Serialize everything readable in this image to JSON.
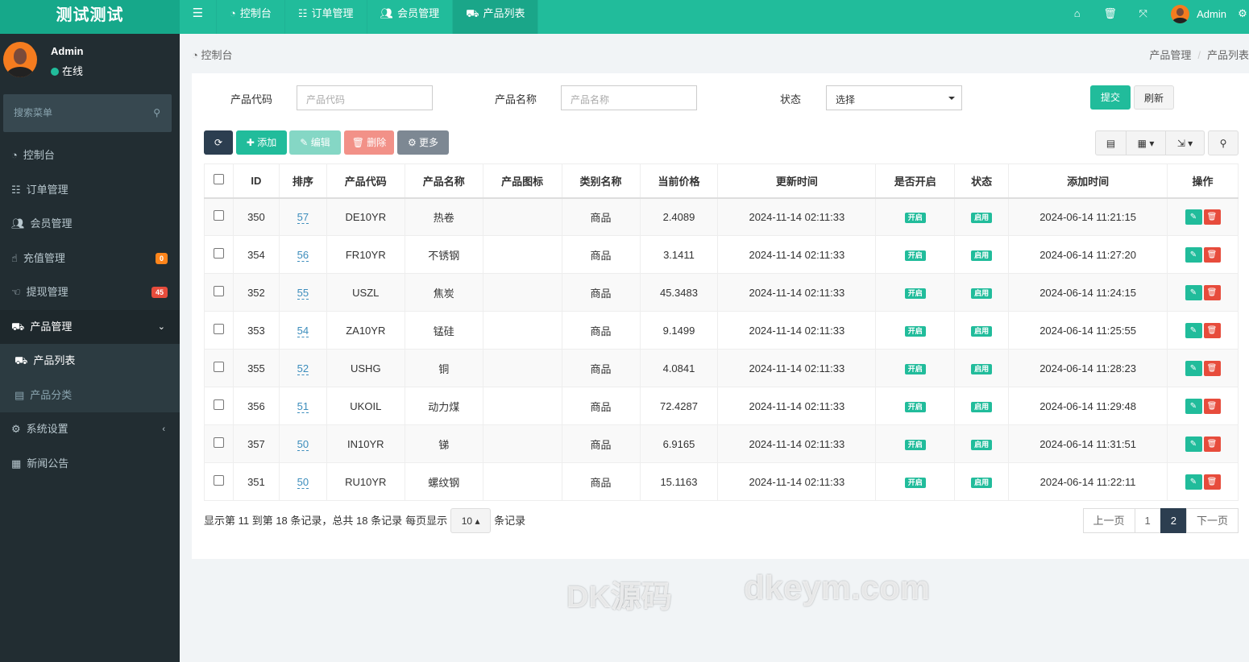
{
  "app": {
    "title": "测试测试"
  },
  "topnav": {
    "items": [
      {
        "label": "控制台",
        "icon": "dashboard-icon"
      },
      {
        "label": "订单管理",
        "icon": "list-icon"
      },
      {
        "label": "会员管理",
        "icon": "users-icon"
      },
      {
        "label": "产品列表",
        "icon": "shopping-bag-icon",
        "active": true
      }
    ],
    "user": "Admin"
  },
  "sidebar": {
    "user": {
      "name": "Admin",
      "status": "在线"
    },
    "search_placeholder": "搜索菜单",
    "items": [
      {
        "label": "控制台"
      },
      {
        "label": "订单管理"
      },
      {
        "label": "会员管理"
      },
      {
        "label": "充值管理",
        "badge": "0",
        "badge_color": "#ff851b"
      },
      {
        "label": "提现管理",
        "badge": "45",
        "badge_color": "#e74c3c"
      },
      {
        "label": "产品管理",
        "open": true
      },
      {
        "label": "产品列表",
        "active": true
      },
      {
        "label": "产品分类"
      },
      {
        "label": "系统设置"
      },
      {
        "label": "新闻公告"
      }
    ]
  },
  "breadcrumb": {
    "home": "控制台",
    "path": [
      "产品管理",
      "产品列表"
    ]
  },
  "search_form": {
    "code_label": "产品代码",
    "code_placeholder": "产品代码",
    "name_label": "产品名称",
    "name_placeholder": "产品名称",
    "status_label": "状态",
    "status_value": "选择",
    "submit": "提交",
    "reset": "刷新"
  },
  "toolbar": {
    "add": "添加",
    "edit": "编辑",
    "delete": "删除",
    "more": "更多"
  },
  "table": {
    "headers": [
      "ID",
      "排序",
      "产品代码",
      "产品名称",
      "产品图标",
      "类别名称",
      "当前价格",
      "更新时间",
      "是否开启",
      "状态",
      "添加时间",
      "操作"
    ],
    "rows": [
      {
        "id": "350",
        "sort": "57",
        "code": "DE10YR",
        "name": "热卷",
        "icon": "",
        "category": "商品",
        "price": "2.4089",
        "updated": "2024-11-14 02:11:33",
        "open": "开启",
        "status": "启用",
        "added": "2024-06-14 11:21:15"
      },
      {
        "id": "354",
        "sort": "56",
        "code": "FR10YR",
        "name": "不锈钢",
        "icon": "",
        "category": "商品",
        "price": "3.1411",
        "updated": "2024-11-14 02:11:33",
        "open": "开启",
        "status": "启用",
        "added": "2024-06-14 11:27:20"
      },
      {
        "id": "352",
        "sort": "55",
        "code": "USZL",
        "name": "焦炭",
        "icon": "",
        "category": "商品",
        "price": "45.3483",
        "updated": "2024-11-14 02:11:33",
        "open": "开启",
        "status": "启用",
        "added": "2024-06-14 11:24:15"
      },
      {
        "id": "353",
        "sort": "54",
        "code": "ZA10YR",
        "name": "锰硅",
        "icon": "",
        "category": "商品",
        "price": "9.1499",
        "updated": "2024-11-14 02:11:33",
        "open": "开启",
        "status": "启用",
        "added": "2024-06-14 11:25:55"
      },
      {
        "id": "355",
        "sort": "52",
        "code": "USHG",
        "name": "铜",
        "icon": "",
        "category": "商品",
        "price": "4.0841",
        "updated": "2024-11-14 02:11:33",
        "open": "开启",
        "status": "启用",
        "added": "2024-06-14 11:28:23"
      },
      {
        "id": "356",
        "sort": "51",
        "code": "UKOIL",
        "name": "动力煤",
        "icon": "",
        "category": "商品",
        "price": "72.4287",
        "updated": "2024-11-14 02:11:33",
        "open": "开启",
        "status": "启用",
        "added": "2024-06-14 11:29:48"
      },
      {
        "id": "357",
        "sort": "50",
        "code": "IN10YR",
        "name": "锑",
        "icon": "",
        "category": "商品",
        "price": "6.9165",
        "updated": "2024-11-14 02:11:33",
        "open": "开启",
        "status": "启用",
        "added": "2024-06-14 11:31:51"
      },
      {
        "id": "351",
        "sort": "50",
        "code": "RU10YR",
        "name": "螺纹钢",
        "icon": "",
        "category": "商品",
        "price": "15.1163",
        "updated": "2024-11-14 02:11:33",
        "open": "开启",
        "status": "启用",
        "added": "2024-06-14 11:22:11"
      }
    ]
  },
  "pagination": {
    "info": "显示第 11 到第 18 条记录，总共 18 条记录",
    "per_page_prefix": "每页显示",
    "page_size": "10",
    "per_page_suffix": "条记录",
    "prev": "上一页",
    "pages": [
      "1",
      "2"
    ],
    "current": "2",
    "next": "下一页"
  },
  "watermark": [
    "DK源码",
    "dkeym.com"
  ],
  "colors": {
    "primary": "#21bc9b",
    "danger": "#e74c3c",
    "sidebar": "#222d32",
    "dark": "#2c3e50"
  }
}
